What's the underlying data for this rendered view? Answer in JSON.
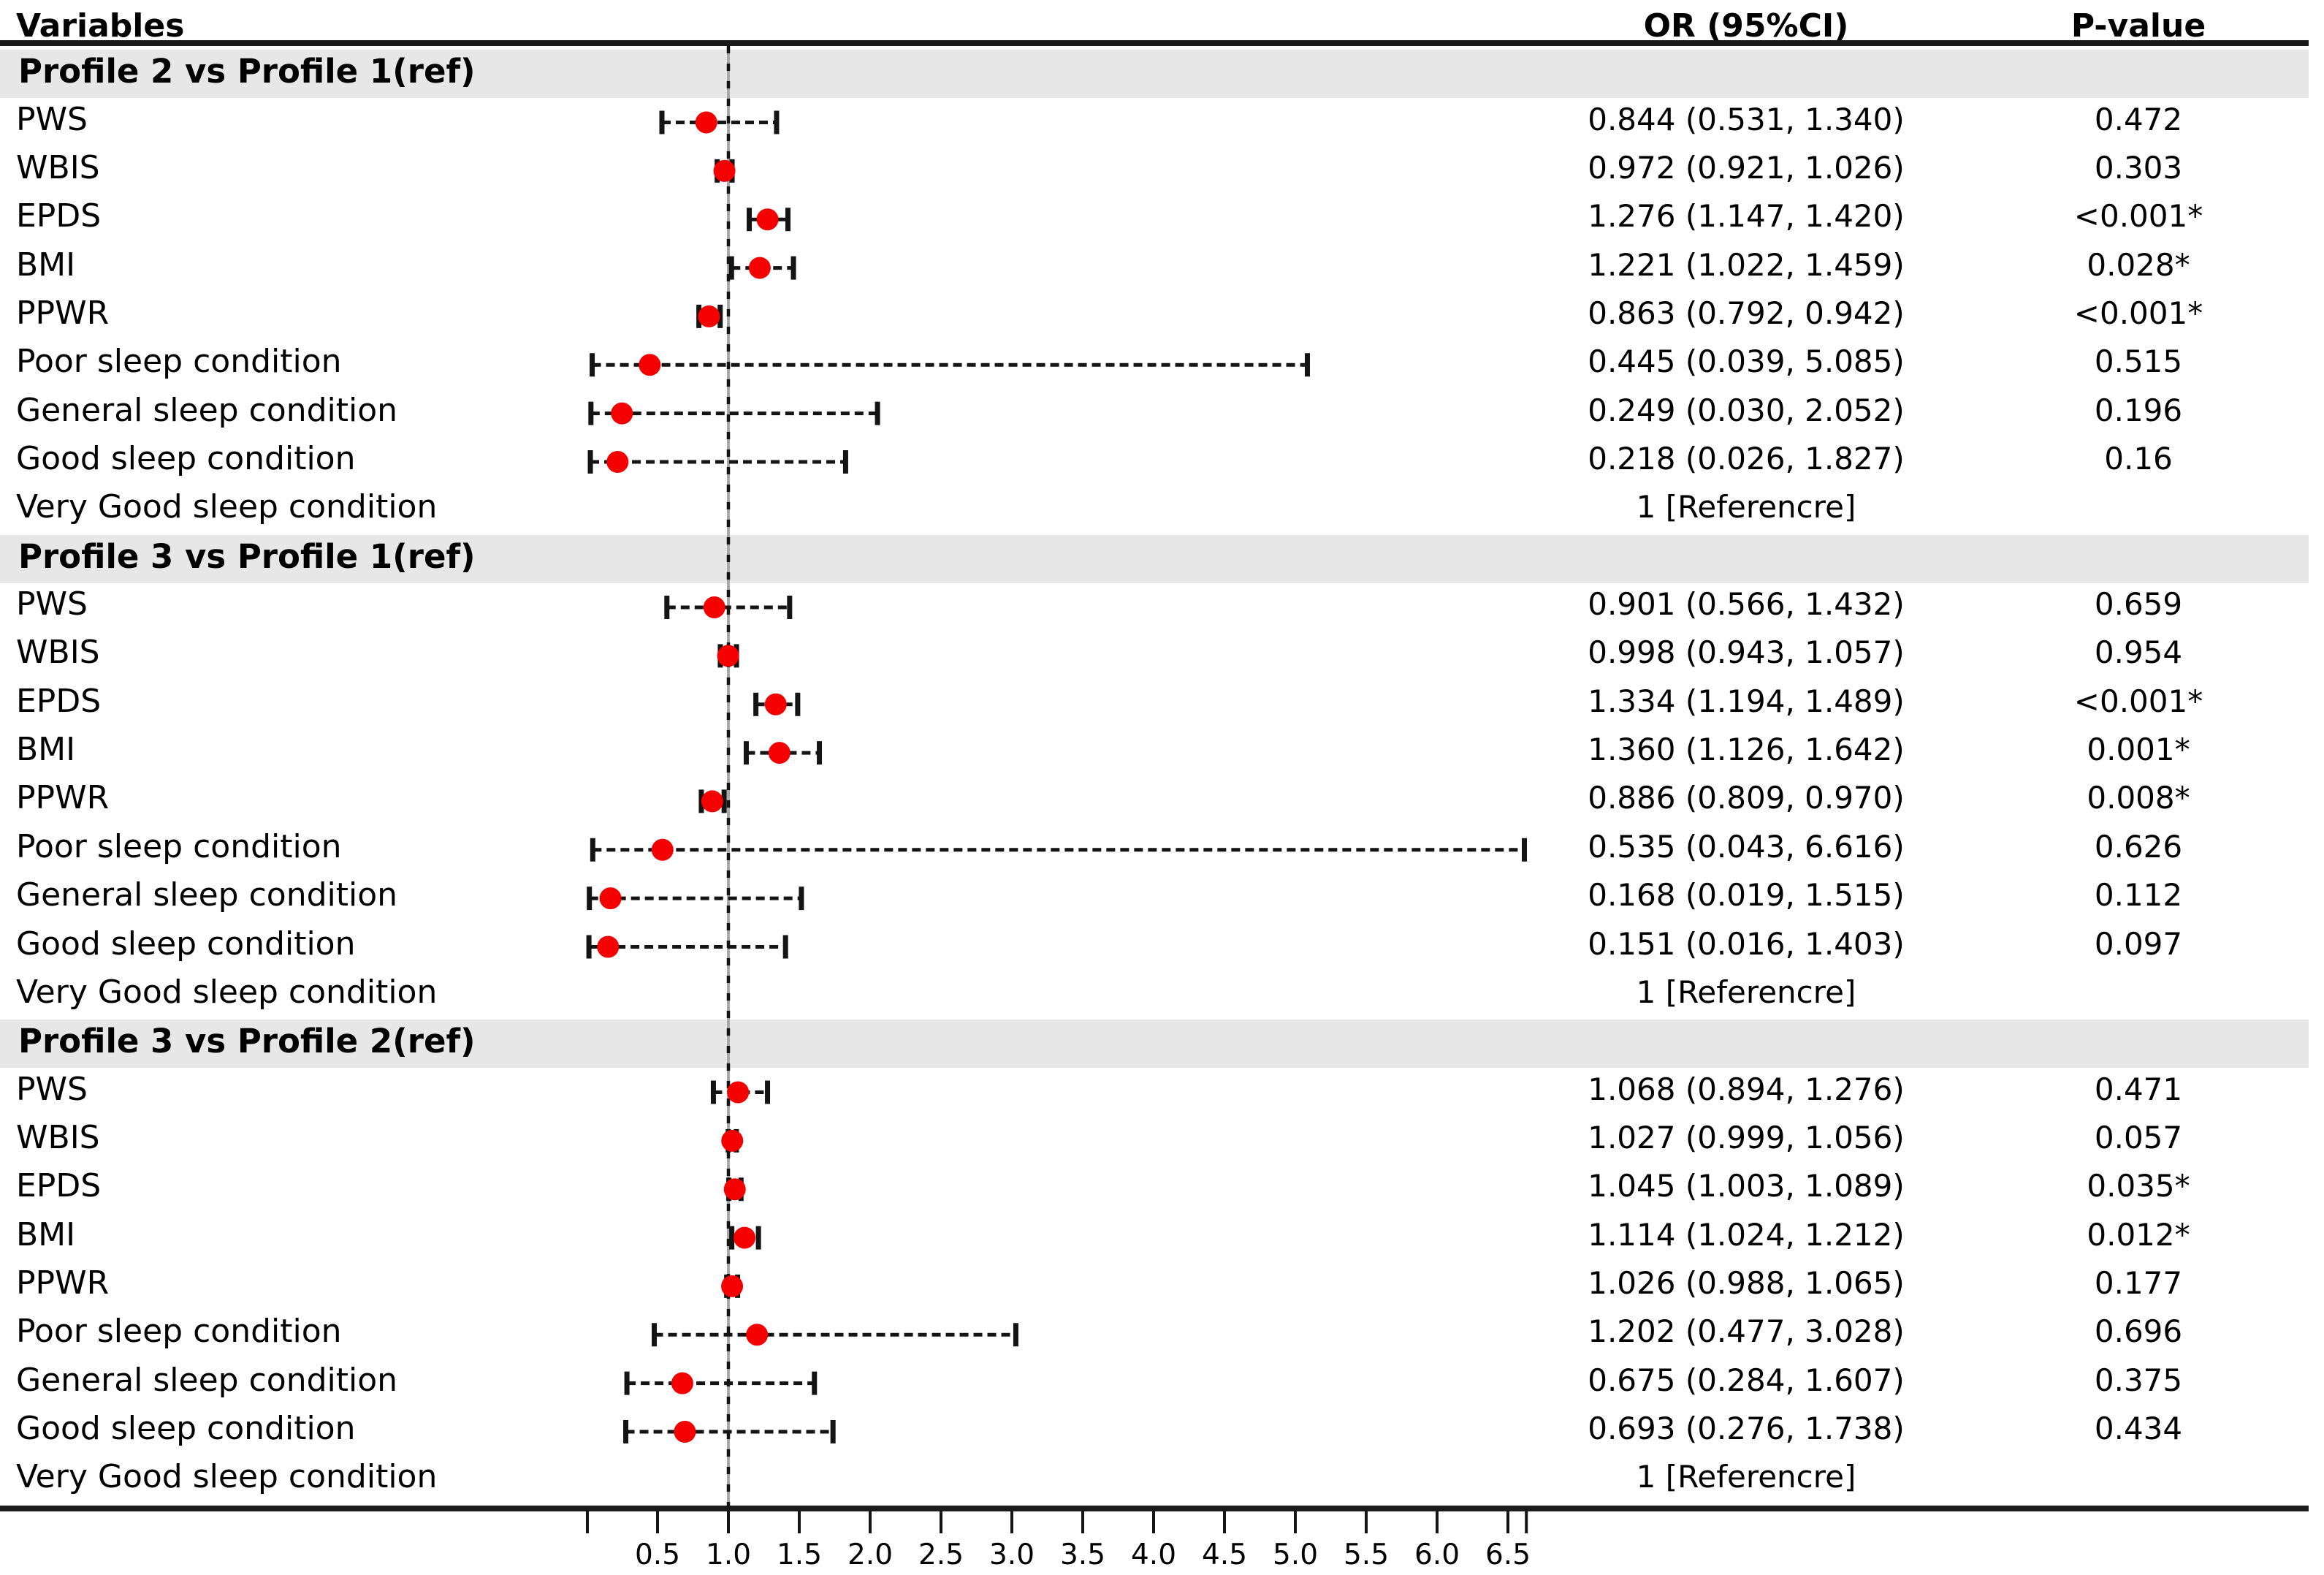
{
  "header": {
    "variables": "Variables",
    "or": "OR (95%CI)",
    "pvalue": "P-value"
  },
  "colors": {
    "point": "#f40000",
    "band": "#e7e7e7",
    "line": "#141414",
    "refline_underlay": "#a8a8a8"
  },
  "chart_data": {
    "type": "forest",
    "columns": [
      "Variables",
      "OR (95%CI)",
      "P-value"
    ],
    "x_range": [
      0.0,
      6.63
    ],
    "ref_line": 1.0,
    "grid": false,
    "x_ticks": [
      {
        "v": 0.5,
        "label": "0.5"
      },
      {
        "v": 1.0,
        "label": "1.0"
      },
      {
        "v": 1.5,
        "label": "1.5"
      },
      {
        "v": 2.0,
        "label": "2.0"
      },
      {
        "v": 2.5,
        "label": "2.5"
      },
      {
        "v": 3.0,
        "label": "3.0"
      },
      {
        "v": 3.5,
        "label": "3.5"
      },
      {
        "v": 4.0,
        "label": "4.0"
      },
      {
        "v": 4.5,
        "label": "4.5"
      },
      {
        "v": 5.0,
        "label": "5.0"
      },
      {
        "v": 5.5,
        "label": "5.5"
      },
      {
        "v": 6.0,
        "label": "6.0"
      },
      {
        "v": 6.5,
        "label": "6.5"
      }
    ],
    "x_minor_ticks": [
      0.005,
      6.63
    ],
    "sections": [
      {
        "header": "Profile 2 vs Profile 1(ref)",
        "rows": [
          {
            "label": "PWS",
            "or": 0.844,
            "lo": 0.531,
            "hi": 1.34,
            "or_ci": "0.844 (0.531, 1.340)",
            "p": "0.472"
          },
          {
            "label": "WBIS",
            "or": 0.972,
            "lo": 0.921,
            "hi": 1.026,
            "or_ci": "0.972 (0.921, 1.026)",
            "p": "0.303"
          },
          {
            "label": "EPDS",
            "or": 1.276,
            "lo": 1.147,
            "hi": 1.42,
            "or_ci": "1.276 (1.147, 1.420)",
            "p": "<0.001*"
          },
          {
            "label": "BMI",
            "or": 1.221,
            "lo": 1.022,
            "hi": 1.459,
            "or_ci": "1.221 (1.022, 1.459)",
            "p": "0.028*"
          },
          {
            "label": "PPWR",
            "or": 0.863,
            "lo": 0.792,
            "hi": 0.942,
            "or_ci": "0.863 (0.792, 0.942)",
            "p": "<0.001*"
          },
          {
            "label": "Poor sleep condition",
            "or": 0.445,
            "lo": 0.039,
            "hi": 5.085,
            "or_ci": "0.445 (0.039, 5.085)",
            "p": "0.515"
          },
          {
            "label": "General sleep condition",
            "or": 0.249,
            "lo": 0.03,
            "hi": 2.052,
            "or_ci": "0.249 (0.030, 2.052)",
            "p": "0.196"
          },
          {
            "label": "Good sleep condition",
            "or": 0.218,
            "lo": 0.026,
            "hi": 1.827,
            "or_ci": "0.218 (0.026, 1.827)",
            "p": "0.16"
          },
          {
            "label": "Very Good sleep condition",
            "reference": true,
            "or_ci": "1 [Referencre]",
            "p": ""
          }
        ]
      },
      {
        "header": "Profile 3 vs Profile 1(ref)",
        "rows": [
          {
            "label": "PWS",
            "or": 0.901,
            "lo": 0.566,
            "hi": 1.432,
            "or_ci": "0.901 (0.566, 1.432)",
            "p": "0.659"
          },
          {
            "label": "WBIS",
            "or": 0.998,
            "lo": 0.943,
            "hi": 1.057,
            "or_ci": "0.998 (0.943, 1.057)",
            "p": "0.954"
          },
          {
            "label": "EPDS",
            "or": 1.334,
            "lo": 1.194,
            "hi": 1.489,
            "or_ci": "1.334 (1.194, 1.489)",
            "p": "<0.001*"
          },
          {
            "label": "BMI",
            "or": 1.36,
            "lo": 1.126,
            "hi": 1.642,
            "or_ci": "1.360 (1.126, 1.642)",
            "p": "0.001*"
          },
          {
            "label": "PPWR",
            "or": 0.886,
            "lo": 0.809,
            "hi": 0.97,
            "or_ci": "0.886 (0.809, 0.970)",
            "p": "0.008*"
          },
          {
            "label": "Poor sleep condition",
            "or": 0.535,
            "lo": 0.043,
            "hi": 6.616,
            "or_ci": "0.535 (0.043, 6.616)",
            "p": "0.626"
          },
          {
            "label": "General sleep condition",
            "or": 0.168,
            "lo": 0.019,
            "hi": 1.515,
            "or_ci": "0.168 (0.019, 1.515)",
            "p": "0.112"
          },
          {
            "label": "Good sleep condition",
            "or": 0.151,
            "lo": 0.016,
            "hi": 1.403,
            "or_ci": "0.151 (0.016, 1.403)",
            "p": "0.097"
          },
          {
            "label": "Very Good sleep condition",
            "reference": true,
            "or_ci": "1 [Referencre]",
            "p": ""
          }
        ]
      },
      {
        "header": "Profile 3 vs Profile 2(ref)",
        "rows": [
          {
            "label": "PWS",
            "or": 1.068,
            "lo": 0.894,
            "hi": 1.276,
            "or_ci": "1.068 (0.894, 1.276)",
            "p": "0.471"
          },
          {
            "label": "WBIS",
            "or": 1.027,
            "lo": 0.999,
            "hi": 1.056,
            "or_ci": "1.027 (0.999, 1.056)",
            "p": "0.057"
          },
          {
            "label": "EPDS",
            "or": 1.045,
            "lo": 1.003,
            "hi": 1.089,
            "or_ci": "1.045 (1.003, 1.089)",
            "p": "0.035*"
          },
          {
            "label": "BMI",
            "or": 1.114,
            "lo": 1.024,
            "hi": 1.212,
            "or_ci": "1.114 (1.024, 1.212)",
            "p": "0.012*"
          },
          {
            "label": "PPWR",
            "or": 1.026,
            "lo": 0.988,
            "hi": 1.065,
            "or_ci": "1.026 (0.988, 1.065)",
            "p": "0.177"
          },
          {
            "label": "Poor sleep condition",
            "or": 1.202,
            "lo": 0.477,
            "hi": 3.028,
            "or_ci": "1.202 (0.477, 3.028)",
            "p": "0.696"
          },
          {
            "label": "General sleep condition",
            "or": 0.675,
            "lo": 0.284,
            "hi": 1.607,
            "or_ci": "0.675 (0.284, 1.607)",
            "p": "0.375"
          },
          {
            "label": "Good sleep condition",
            "or": 0.693,
            "lo": 0.276,
            "hi": 1.738,
            "or_ci": "0.693 (0.276, 1.738)",
            "p": "0.434"
          },
          {
            "label": "Very Good sleep condition",
            "reference": true,
            "or_ci": "1 [Referencre]",
            "p": ""
          }
        ]
      }
    ]
  }
}
